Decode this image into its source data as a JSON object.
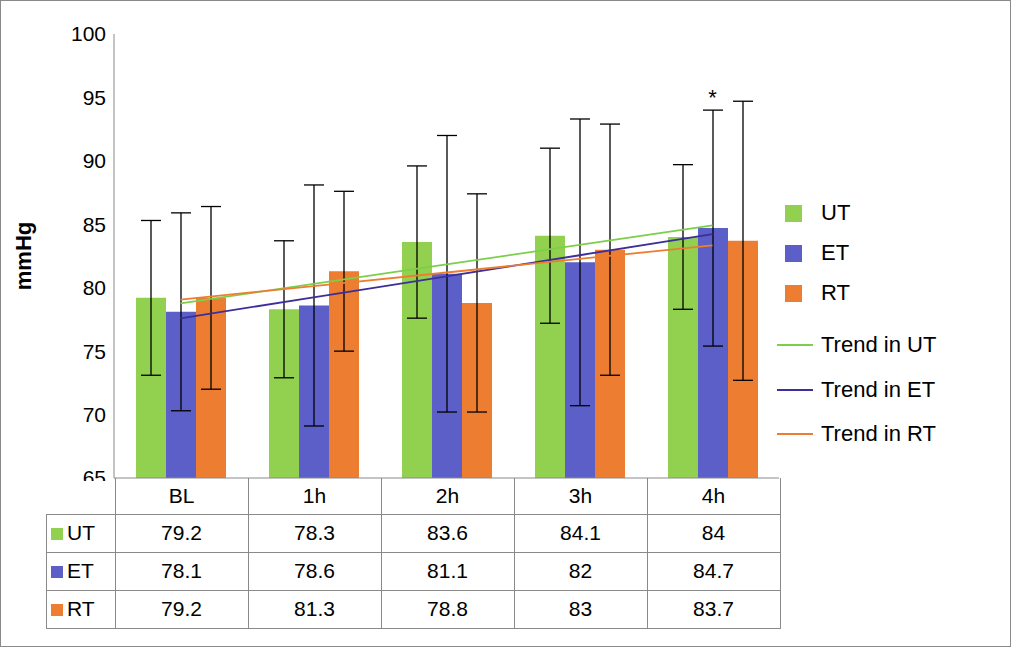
{
  "chart_data": {
    "type": "bar",
    "y_label": "mmHg",
    "categories": [
      "BL",
      "1h",
      "2h",
      "3h",
      "4h"
    ],
    "ylim": [
      65,
      100
    ],
    "yticks": [
      65,
      70,
      75,
      80,
      85,
      90,
      95,
      100
    ],
    "grid": false,
    "legend": "right",
    "series": [
      {
        "name": "UT",
        "type": "bar",
        "color": "#92d050",
        "values": [
          79.2,
          78.3,
          83.6,
          84.1,
          84
        ],
        "errors": [
          6.1,
          5.4,
          6.0,
          6.9,
          5.7
        ]
      },
      {
        "name": "ET",
        "type": "bar",
        "color": "#5b5fc7",
        "values": [
          78.1,
          78.6,
          81.1,
          82,
          84.7
        ],
        "errors": [
          7.8,
          9.5,
          10.9,
          11.3,
          9.3
        ]
      },
      {
        "name": "RT",
        "type": "bar",
        "color": "#ed7d31",
        "values": [
          79.2,
          81.3,
          78.8,
          83,
          83.7
        ],
        "errors": [
          7.2,
          6.3,
          8.6,
          9.9,
          11
        ]
      },
      {
        "name": "Trend in UT",
        "type": "line",
        "color": "#7ccf4a",
        "line_style": "solid",
        "values": [
          78.76,
          80.3,
          81.84,
          83.38,
          84.92
        ]
      },
      {
        "name": "Trend in ET",
        "type": "line",
        "color": "#3b2f9c",
        "line_style": "solid",
        "values": [
          77.58,
          79.24,
          80.9,
          82.56,
          84.22
        ]
      },
      {
        "name": "Trend in RT",
        "type": "line",
        "color": "#ed7d31",
        "line_style": "solid",
        "values": [
          79.06,
          80.13,
          81.2,
          82.27,
          83.34
        ]
      }
    ],
    "annotations": [
      {
        "text": "*",
        "category": "4h",
        "series": "ET"
      }
    ]
  }
}
